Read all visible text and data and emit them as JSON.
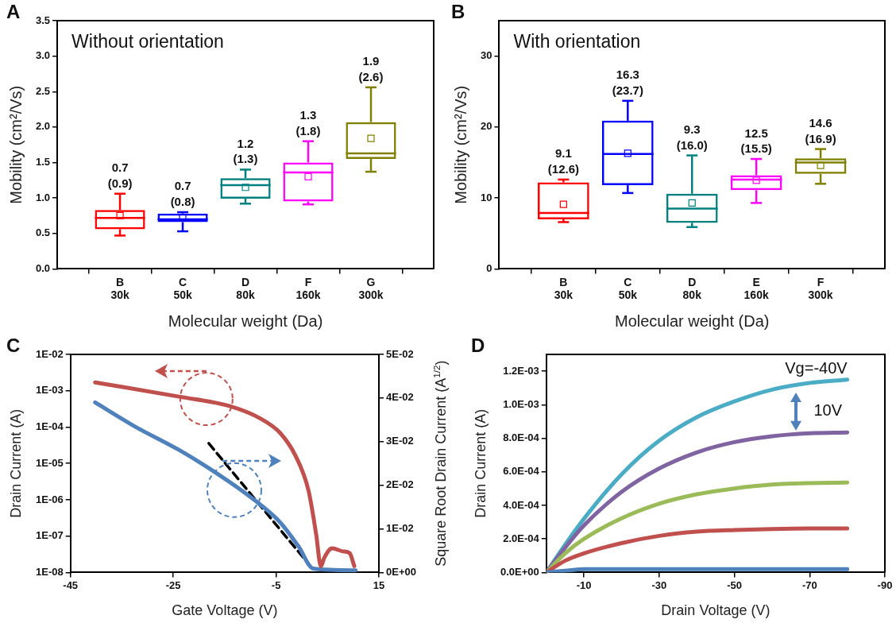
{
  "chart_data": [
    {
      "type": "box",
      "title": "Without orientation",
      "xlabel": "Molecular weight (Da)",
      "ylabel": "Mobility (cm²/Vs)",
      "categories": [
        "B 30k",
        "C 50k",
        "D 80k",
        "F 160k",
        "G 300k"
      ],
      "colors": [
        "#ff0000",
        "#0000ff",
        "#008080",
        "#ff00ff",
        "#808000"
      ],
      "boxes": [
        {
          "low": 0.47,
          "q1": 0.56,
          "median": 0.72,
          "q3": 0.83,
          "high": 1.06,
          "mean": 0.75
        },
        {
          "low": 0.53,
          "q1": 0.66,
          "median": 0.7,
          "q3": 0.78,
          "high": 0.8,
          "mean": 0.72
        },
        {
          "low": 0.92,
          "q1": 0.99,
          "median": 1.18,
          "q3": 1.28,
          "high": 1.4,
          "mean": 1.15
        },
        {
          "low": 0.91,
          "q1": 0.95,
          "median": 1.36,
          "q3": 1.5,
          "high": 1.8,
          "mean": 1.3
        },
        {
          "low": 1.37,
          "q1": 1.55,
          "median": 1.63,
          "q3": 2.07,
          "high": 2.56,
          "mean": 1.84
        }
      ],
      "ylim": [
        0,
        3.5
      ],
      "yticks": [
        {
          "value": 0,
          "label": "0.0"
        },
        0.5,
        {
          "value": 1,
          "label": "1.0"
        },
        1.5,
        {
          "value": 2,
          "label": "2.0"
        },
        2.5,
        {
          "value": 3,
          "label": "3.0"
        },
        3.5
      ],
      "annotations": [
        "A",
        {
          "text": "0.7 (0.9)",
          "x": "B 30k",
          "y": 1.06
        },
        {
          "text": "0.7 (0.8)",
          "x": "C 50k",
          "y": 0.8
        },
        {
          "text": "1.2 (1.3)",
          "x": "D 80k",
          "y": 1.4
        },
        {
          "text": "1.3 (1.8)",
          "x": "F 160k",
          "y": 1.8
        },
        {
          "text": "1.9 (2.6)",
          "x": "G 300k",
          "y": 2.56
        }
      ]
    },
    {
      "type": "box",
      "title": "With orientation",
      "xlabel": "Molecular weight (Da)",
      "ylabel": "Mobility (cm²/Vs)",
      "categories": [
        "B 30k",
        "C 50k",
        "D 80k",
        "E 160k",
        "F 300k"
      ],
      "colors": [
        "#ff0000",
        "#0000ff",
        "#008080",
        "#ff00ff",
        "#808000"
      ],
      "boxes": [
        {
          "low": 6.6,
          "q1": 7,
          "median": 7.9,
          "q3": 12.2,
          "high": 12.6,
          "mean": 9.1
        },
        {
          "low": 10.7,
          "q1": 11.8,
          "median": 16.2,
          "q3": 20.9,
          "high": 23.7,
          "mean": 16.3
        },
        {
          "low": 5.9,
          "q1": 6.5,
          "median": 8.5,
          "q3": 10.6,
          "high": 16,
          "mean": 9.3
        },
        {
          "low": 9.3,
          "q1": 11.1,
          "median": 12.6,
          "q3": 13.2,
          "high": 15.5,
          "mean": 12.5
        },
        {
          "low": 12,
          "q1": 13.4,
          "median": 15,
          "q3": 15.6,
          "high": 16.9,
          "mean": 14.6
        }
      ],
      "ylim": [
        0,
        35
      ],
      "yticks": [
        0,
        10,
        20,
        30
      ],
      "annotations": [
        "B",
        {
          "text": "9.1 (12.6)",
          "x": "B 30k",
          "y": 12.6
        },
        {
          "text": "16.3 (23.7)",
          "x": "C 50k",
          "y": 23.7
        },
        {
          "text": "9.3 (16.0)",
          "x": "D 80k",
          "y": 16
        },
        {
          "text": "12.5 (15.5)",
          "x": "E 160k",
          "y": 15.5
        },
        {
          "text": "14.6 (16.9)",
          "x": "F 300k",
          "y": 16.9
        }
      ]
    },
    {
      "type": "line",
      "xlabel": "Gate Voltage (V)",
      "ylabel": "Drain Current (A)",
      "y2label": "Square Root Drain Current (A$^{1/2}$)",
      "log": "y",
      "xlim": [
        -45,
        15
      ],
      "xticks": [
        -45,
        -25,
        -5,
        15
      ],
      "ylim": [
        1e-08,
        0.01
      ],
      "yticks": [
        {
          "value": 1e-08,
          "label": "1E-08"
        },
        {
          "value": 1e-07,
          "label": "1E-07"
        },
        {
          "value": 1e-06,
          "label": "1E-06"
        },
        {
          "value": 1e-05,
          "label": "1E-05"
        },
        {
          "value": 0.0001,
          "label": "1E-04"
        },
        {
          "value": 0.001,
          "label": "1E-03"
        },
        {
          "value": 0.01,
          "label": "1E-02"
        }
      ],
      "y2lim": [
        0,
        0.05
      ],
      "y2ticks": [
        {
          "value": 0,
          "label": "0E+00"
        },
        {
          "value": 0.01,
          "label": "1E-02"
        },
        {
          "value": 0.02,
          "label": "2E-02"
        },
        {
          "value": 0.03,
          "label": "3E-02"
        },
        {
          "value": 0.04,
          "label": "4E-02"
        },
        {
          "value": 0.05,
          "label": "5E-02"
        }
      ],
      "series": [
        {
          "color": "#c0504d",
          "x": [
            -40.2,
            -23.9,
            -14.1,
            -8,
            -4.3,
            -1.2,
            1.3,
            2.8,
            3.7,
            4.4,
            5.9,
            8,
            9.3,
            10.2
          ],
          "values": [
            0.0017,
            0.00069,
            0.00038,
            0.00017,
            7.1e-05,
            1.6e-05,
            1.8e-06,
            1.1e-07,
            1.5e-08,
            2.6e-08,
            4.6e-08,
            3.8e-08,
            3.4e-08,
            1.5e-08
          ]
        },
        {
          "color": "#4f81bd",
          "axis": "y2",
          "x": [
            -40.2,
            -32.5,
            -23.9,
            -16.5,
            -9.2,
            -4.3,
            -0.6,
            2.2,
            10.5
          ],
          "values": [
            0.039,
            0.0335,
            0.0281,
            0.0227,
            0.0166,
            0.0116,
            0.0059,
            0.0009,
            0.0005
          ]
        },
        {
          "type": "line",
          "color": "#000000",
          "axis": "y2",
          "line_style": "dashed",
          "x": [
            -18.1,
            2.2
          ],
          "values": [
            0.0296,
            0.0007
          ]
        }
      ],
      "annotations": [
        "C"
      ]
    },
    {
      "type": "line",
      "xlabel": "Drain Voltage (V)",
      "ylabel": "Drain Current (A)",
      "xlim": [
        0,
        -90
      ],
      "xticks": [
        -10,
        -30,
        -50,
        -70,
        -90
      ],
      "ylim": [
        0,
        0.0013
      ],
      "yticks": [
        {
          "value": 0,
          "label": "0.0E+00"
        },
        {
          "value": 0.0002,
          "label": "2.0E-04"
        },
        {
          "value": 0.0004,
          "label": "4.0E-04"
        },
        {
          "value": 0.0006,
          "label": "6.0E-04"
        },
        {
          "value": 0.0008,
          "label": "8.0E-04"
        },
        {
          "value": 0.001,
          "label": "1.0E-03"
        },
        {
          "value": 0.0012,
          "label": "1.2E-03"
        }
      ],
      "x": [
        0,
        -5,
        -10,
        -20,
        -30,
        -40,
        -50,
        -60,
        -70,
        -80
      ],
      "series": [
        {
          "color": "#4f81bd",
          "values": [
            0,
            1e-05,
            2e-05,
            2e-05,
            2e-05,
            2e-05,
            2e-05,
            2e-05,
            2e-05,
            2e-05
          ]
        },
        {
          "color": "#c0504d",
          "values": [
            0,
            7e-05,
            0.000114,
            0.000175,
            0.000218,
            0.000243,
            0.000253,
            0.000259,
            0.000262,
            0.000262
          ]
        },
        {
          "color": "#9bbb59",
          "values": [
            0,
            0.000114,
            0.0002,
            0.000323,
            0.00041,
            0.000466,
            0.000501,
            0.000524,
            0.000533,
            0.000536
          ]
        },
        {
          "color": "#8064a2",
          "values": [
            0,
            0.000148,
            0.00028,
            0.00048,
            0.00062,
            0.000716,
            0.000777,
            0.000812,
            0.00083,
            0.000835
          ]
        },
        {
          "color": "#4bacc6",
          "values": [
            0,
            0.000166,
            0.00032,
            0.000585,
            0.000786,
            0.000926,
            0.00102,
            0.00109,
            0.00113,
            0.00115
          ]
        }
      ],
      "annotations": [
        "D",
        {
          "text": "Vg=-40V",
          "x": -80,
          "y": 0.00115
        },
        "10V"
      ]
    }
  ]
}
